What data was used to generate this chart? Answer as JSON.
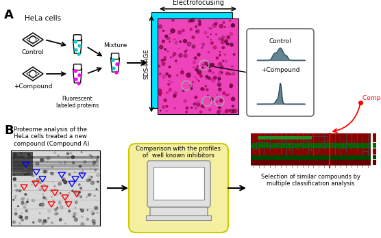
{
  "bg_color": "#ffffff",
  "panel_A_label": "A",
  "panel_B_label": "B",
  "hela_cells_text": "HeLa cells",
  "control_text": "Control",
  "compound_text": "+Compound",
  "mixture_text": "Mixture",
  "fluorescent_text": "Fluorescent\nlabeled proteins",
  "electrofocusing_text": "Electrofocusing",
  "sdspace_text": "SDS-PAGE",
  "control2_text": "Control",
  "compound2_text": "+Compound",
  "panel_b_title": "Proteome analysis of the\nHeLa cells treated a new\ncompound (Compound A)",
  "comparison_text": "Comparison with the profiles\nof  well known inhibitors",
  "selection_text": "Selection of similar compounds by\nmultiple classification analysis",
  "compound_a_text": "Compound A",
  "cyan_color": "#00e0ff",
  "magenta_gel": "#ee44bb",
  "magenta_color": "#ff00ff",
  "yellow_bg": "#f5f0a0",
  "arrow_color": "#000000",
  "red_color": "#cc0000",
  "green_color": "#228b22",
  "dark_red": "#8b0000",
  "peak_color": "#4a7080"
}
